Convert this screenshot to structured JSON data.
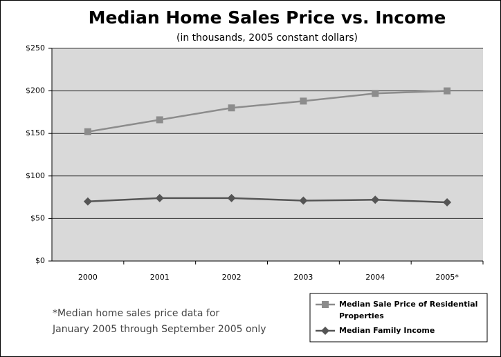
{
  "chart_data": {
    "type": "line",
    "title": "Median Home Sales Price vs. Income",
    "subtitle": "(in thousands, 2005 constant dollars)",
    "categories": [
      "2000",
      "2001",
      "2002",
      "2003",
      "2004",
      "2005*"
    ],
    "series": [
      {
        "name": "Median Sale Price of Residential Properties",
        "color": "#8c8c8c",
        "marker": "square",
        "values": [
          152,
          166,
          180,
          188,
          197,
          200
        ]
      },
      {
        "name": "Median Family Income",
        "color": "#555555",
        "marker": "diamond",
        "values": [
          70,
          74,
          74,
          71,
          72,
          69
        ]
      }
    ],
    "ylim": [
      0,
      250
    ],
    "yticks": [
      {
        "value": 0,
        "label": "$0"
      },
      {
        "value": 50,
        "label": "$50"
      },
      {
        "value": 100,
        "label": "$100"
      },
      {
        "value": 150,
        "label": "$150"
      },
      {
        "value": 200,
        "label": "$200"
      },
      {
        "value": 250,
        "label": "$250"
      }
    ],
    "grid": true,
    "legend": "bottom-right",
    "notes": [
      "*Median home sales price data for",
      "January 2005 through September 2005 only"
    ]
  }
}
